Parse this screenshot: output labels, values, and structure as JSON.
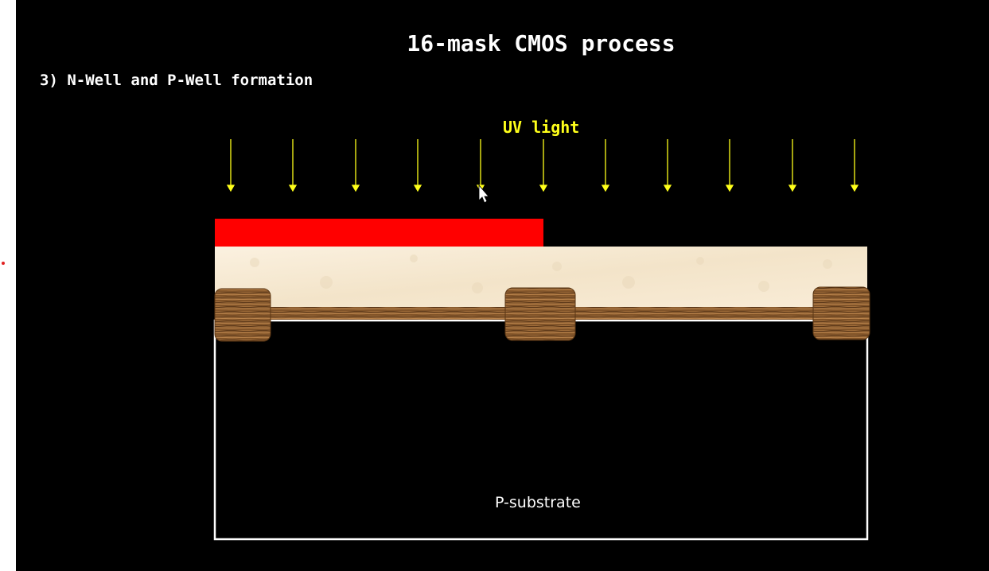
{
  "slide": {
    "title": "16-mask CMOS process",
    "step_heading": "3) N-Well and P-Well formation"
  },
  "diagram": {
    "uv_label": "UV light",
    "substrate_label": "P-substrate",
    "colors": {
      "uv_arrow": "#ffff1a",
      "photoresist_mask": "#ff0000",
      "oxide_layer": "#f8ebd6",
      "field_oxide": "#8a5a2e",
      "substrate_outline": "#ffffff",
      "background": "#000000"
    }
  }
}
